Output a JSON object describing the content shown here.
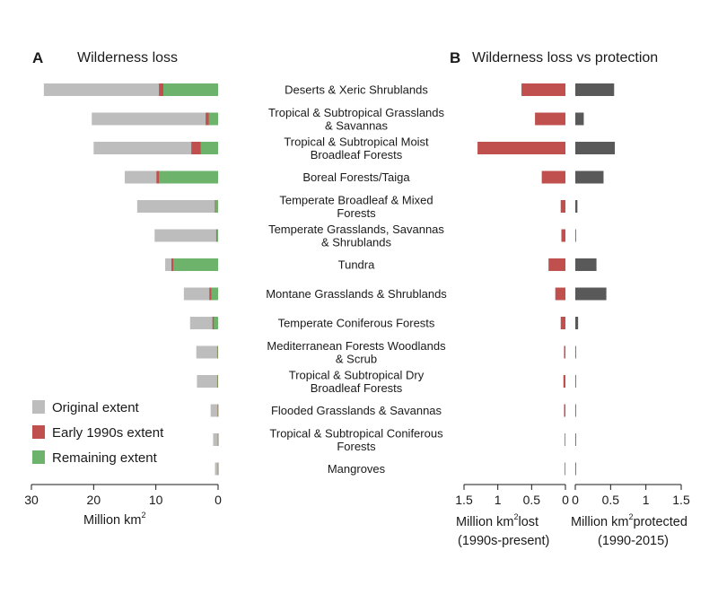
{
  "colors": {
    "original": "#bdbdbd",
    "early1990s": "#c0504d",
    "remaining": "#6db36c",
    "lost": "#c0504d",
    "protected": "#595959",
    "axis": "#1a1a1a"
  },
  "chart_data": [
    {
      "panel": "A",
      "type": "bar",
      "orientation": "horizontal",
      "direction": "right-to-left",
      "stacked": "overlay",
      "title": "Wilderness loss",
      "xlabel_main": "Million km",
      "xlabel_sup": "2",
      "xlim": [
        0,
        30
      ],
      "xticks": [
        30,
        20,
        10,
        0
      ],
      "grid": false,
      "legend_position": "bottom-left",
      "categories": [
        "Deserts & Xeric Shrublands",
        "Tropical & Subtropical Grasslands & Savannas",
        "Tropical & Subtropical Moist Broadleaf Forests",
        "Boreal Forests/Taiga",
        "Temperate Broadleaf & Mixed Forests",
        "Temperate Grasslands, Savannas & Shrublands",
        "Tundra",
        "Montane Grasslands & Shrublands",
        "Temperate Coniferous Forests",
        "Mediterranean Forests Woodlands & Scrub",
        "Tropical & Subtropical Dry Broadleaf Forests",
        "Flooded Grasslands & Savannas",
        "Tropical & Subtropical Coniferous Forests",
        "Mangroves"
      ],
      "category_lines": [
        [
          "Deserts & Xeric Shrublands"
        ],
        [
          "Tropical & Subtropical Grasslands",
          "& Savannas"
        ],
        [
          "Tropical & Subtropical Moist",
          "Broadleaf Forests"
        ],
        [
          "Boreal Forests/Taiga"
        ],
        [
          "Temperate Broadleaf & Mixed",
          "Forests"
        ],
        [
          "Temperate Grasslands, Savannas",
          "& Shrublands"
        ],
        [
          "Tundra"
        ],
        [
          "Montane Grasslands & Shrublands"
        ],
        [
          "Temperate Coniferous Forests"
        ],
        [
          "Mediterranean Forests Woodlands",
          "& Scrub"
        ],
        [
          "Tropical & Subtropical  Dry",
          "Broadleaf Forests"
        ],
        [
          "Flooded Grasslands & Savannas"
        ],
        [
          "Tropical & Subtropical Coniferous",
          "Forests"
        ],
        [
          "Mangroves"
        ]
      ],
      "series": [
        {
          "name": "Original extent",
          "values": [
            28,
            20.3,
            20,
            15,
            13,
            10.2,
            8.5,
            5.5,
            4.5,
            3.5,
            3.4,
            1.2,
            0.8,
            0.5
          ]
        },
        {
          "name": "Early 1990s extent",
          "values": [
            9.5,
            2.0,
            4.3,
            9.9,
            0.5,
            0.3,
            7.5,
            1.4,
            0.9,
            0.15,
            0.15,
            0.1,
            0.05,
            0.05
          ]
        },
        {
          "name": "Remaining extent",
          "values": [
            8.8,
            1.5,
            2.8,
            9.5,
            0.4,
            0.2,
            7.2,
            1.1,
            0.7,
            0.1,
            0.1,
            0.05,
            0.03,
            0.03
          ]
        }
      ],
      "legend": [
        "Original extent",
        "Early 1990s extent",
        "Remaining extent"
      ]
    },
    {
      "panel": "B",
      "type": "bar",
      "orientation": "horizontal",
      "title": "Wilderness loss vs protection",
      "left": {
        "name": "Million km2 lost",
        "xlabel_main": "Million km",
        "xlabel_sup": "2",
        "xlabel_rest": "lost",
        "xlabel_line2": "(1990s-present)",
        "xlim": [
          1.5,
          0
        ],
        "xticks": [
          "1.5",
          "1",
          "0.5",
          "0"
        ],
        "values": [
          0.65,
          0.45,
          1.3,
          0.35,
          0.07,
          0.06,
          0.25,
          0.15,
          0.07,
          0.02,
          0.03,
          0.02,
          0.005,
          0.01
        ]
      },
      "right": {
        "name": "Million km2 protected",
        "xlabel_main": "Million km",
        "xlabel_sup": "2",
        "xlabel_rest": "protected",
        "xlabel_line2": "(1990-2015)",
        "xlim": [
          0,
          1.5
        ],
        "xticks": [
          "0",
          "0.5",
          "1",
          "1.5"
        ],
        "values": [
          0.55,
          0.12,
          0.56,
          0.4,
          0.03,
          0.01,
          0.3,
          0.44,
          0.04,
          0.01,
          0.01,
          0.01,
          0.005,
          0.005
        ]
      },
      "grid": false
    }
  ]
}
